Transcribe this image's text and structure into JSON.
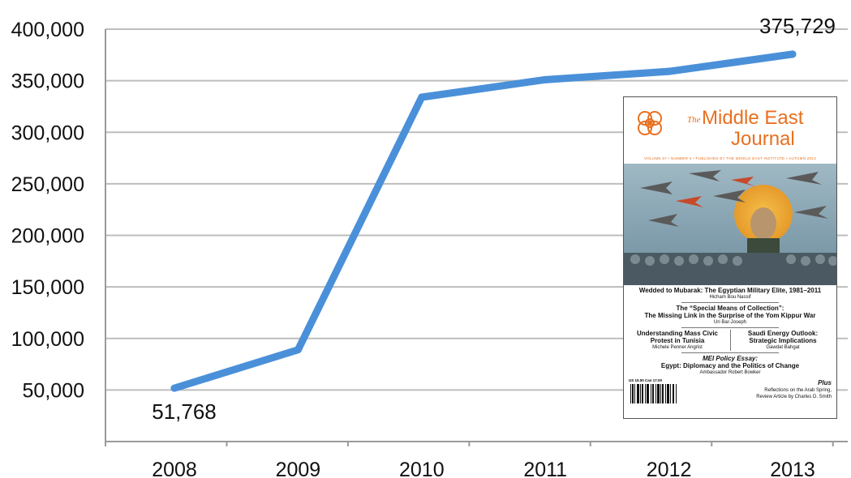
{
  "chart_data": {
    "type": "line",
    "categories": [
      "2008",
      "2009",
      "2010",
      "2011",
      "2012",
      "2013"
    ],
    "series": [
      {
        "values": [
          51768,
          89000,
          334000,
          351000,
          359000,
          375729
        ]
      }
    ],
    "ylim": [
      0,
      400000
    ],
    "y_ticks": [
      "50,000",
      "100,000",
      "150,000",
      "200,000",
      "250,000",
      "300,000",
      "350,000",
      "400,000"
    ],
    "data_labels": [
      {
        "category": "2008",
        "text": "51,768"
      },
      {
        "category": "2013",
        "text": "375,729"
      }
    ],
    "grid": true,
    "line_color": "#4a90d9"
  },
  "inset_cover": {
    "the": "The",
    "title_line1": "Middle East",
    "title_line2": "Journal",
    "meta": "VOLUME 67 • NUMBER 4 • PUBLISHED BY THE MIDDLE EAST INSTITUTE • AUTUMN 2013",
    "article1_title": "Wedded to Mubarak: The Egyptian Military Elite, 1981–2011",
    "article1_author": "Hicham Bou Nassif",
    "article2_title_line1": "The “Special Means of Collection”:",
    "article2_title_line2": "The Missing Link in the Surprise of the Yom Kippur War",
    "article2_author": "Uri Bar-Joseph",
    "article3_title": "Understanding Mass Civic Protest in Tunisia",
    "article3_author": "Michele Penner Angrist",
    "article4_title": "Saudi Energy Outlook: Strategic Implications",
    "article4_author": "Gawdat Bahgat",
    "policy_label": "MEI Policy Essay:",
    "policy_title": "Egypt: Diplomacy and the Politics of Change",
    "policy_author": "Ambassador Robert Bowker",
    "price": "US 15.00    Can 17.00",
    "plus_label": "Plus",
    "plus_line1": "Reflections on the Arab Spring,",
    "plus_line2": "Review Article by Charles D. Smith",
    "accent_color": "#e8701f"
  }
}
